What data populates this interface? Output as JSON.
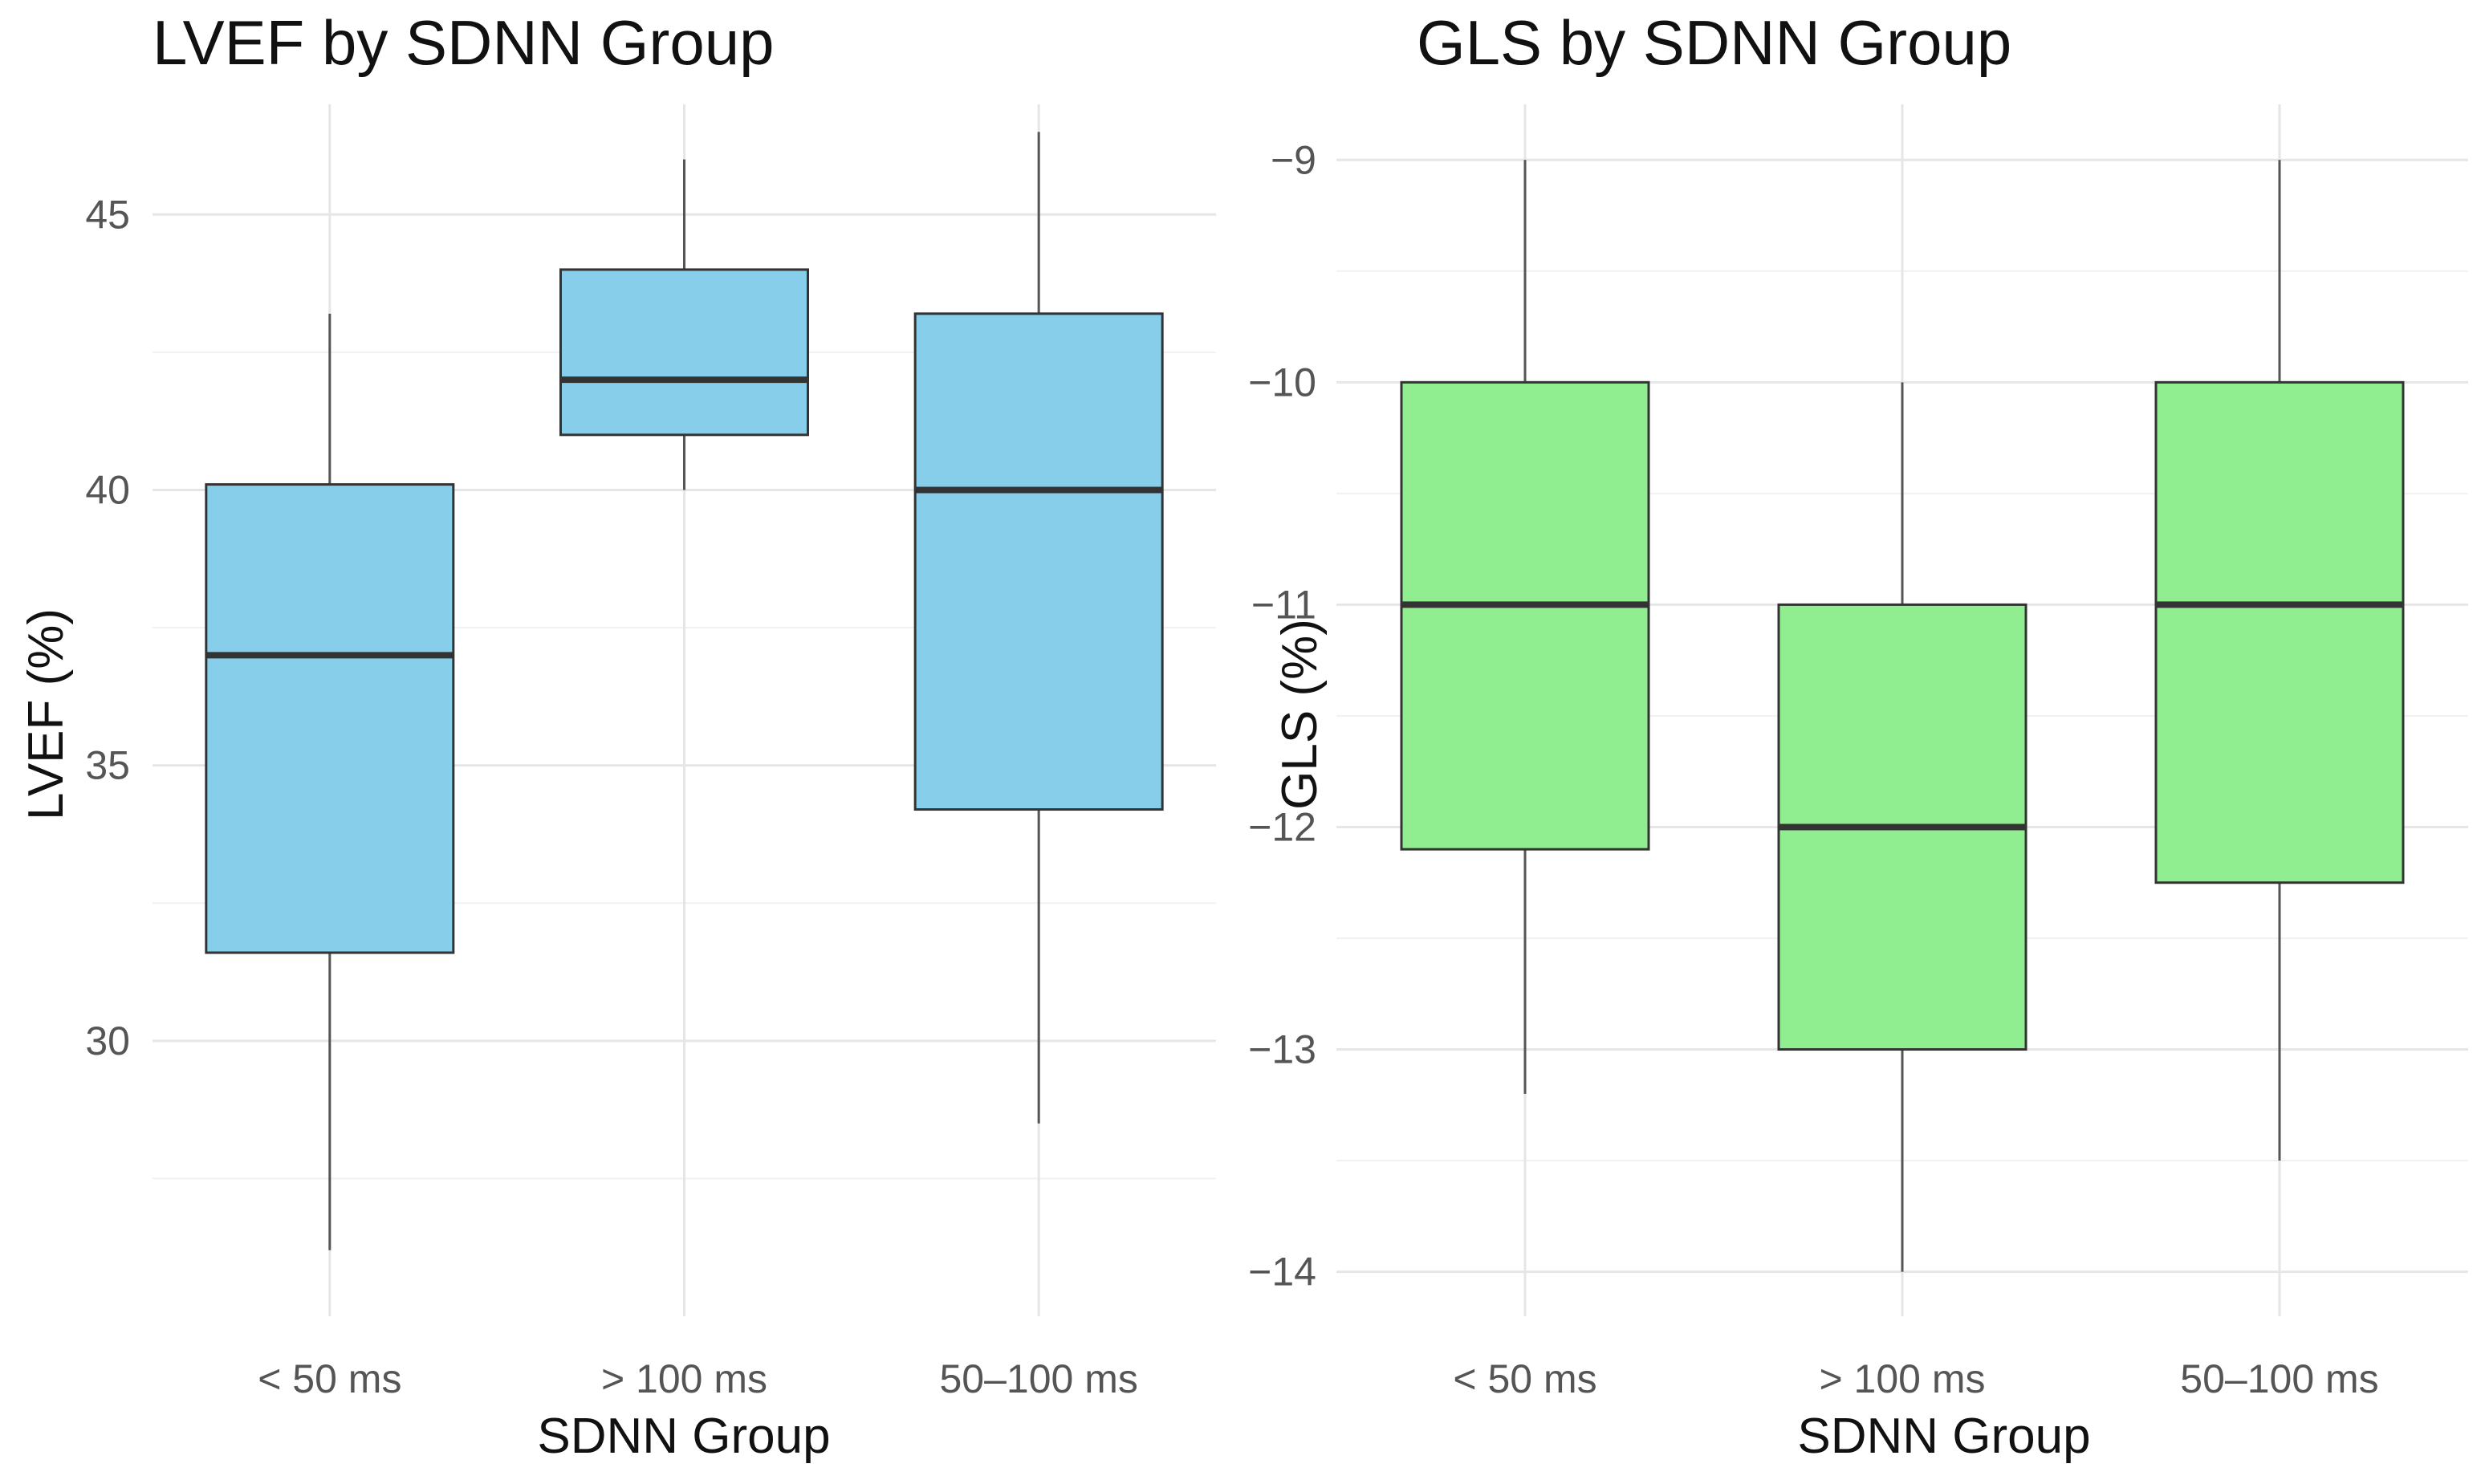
{
  "chart_data": [
    {
      "type": "boxplot",
      "title": "LVEF by SDNN Group",
      "xlabel": "SDNN Group",
      "ylabel": "LVEF (%)",
      "categories": [
        "< 50 ms",
        "> 100 ms",
        "50–100 ms"
      ],
      "ylim": [
        25,
        47
      ],
      "yticks": [
        30,
        35,
        40,
        45
      ],
      "yticks_labels": [
        "30",
        "35",
        "40",
        "45"
      ],
      "grid": true,
      "fill_color": "#87CEEB",
      "boxes": [
        {
          "category": "< 50 ms",
          "whisker_low": 26.2,
          "q1": 31.6,
          "median": 37.0,
          "q3": 40.1,
          "whisker_high": 43.2
        },
        {
          "category": "> 100 ms",
          "whisker_low": 40.0,
          "q1": 41.0,
          "median": 42.0,
          "q3": 44.0,
          "whisker_high": 46.0
        },
        {
          "category": "50–100 ms",
          "whisker_low": 28.5,
          "q1": 34.2,
          "median": 40.0,
          "q3": 43.2,
          "whisker_high": 46.5
        }
      ]
    },
    {
      "type": "boxplot",
      "title": "GLS by SDNN Group",
      "xlabel": "SDNN Group",
      "ylabel": "GLS (%)",
      "categories": [
        "< 50 ms",
        "> 100 ms",
        "50–100 ms"
      ],
      "ylim": [
        -14.2,
        -8.75
      ],
      "yticks": [
        -14,
        -13,
        -12,
        -11,
        -10,
        -9
      ],
      "yticks_labels": [
        "−14",
        "−13",
        "−12",
        "−11",
        "−10",
        "−9"
      ],
      "grid": true,
      "fill_color": "#90EE90",
      "boxes": [
        {
          "category": "< 50 ms",
          "whisker_low": -13.2,
          "q1": -12.1,
          "median": -11.0,
          "q3": -10.0,
          "whisker_high": -9.0
        },
        {
          "category": "> 100 ms",
          "whisker_low": -14.0,
          "q1": -13.0,
          "median": -12.0,
          "q3": -11.0,
          "whisker_high": -10.0
        },
        {
          "category": "50–100 ms",
          "whisker_low": -13.5,
          "q1": -12.25,
          "median": -11.0,
          "q3": -10.0,
          "whisker_high": -9.0
        }
      ]
    }
  ]
}
